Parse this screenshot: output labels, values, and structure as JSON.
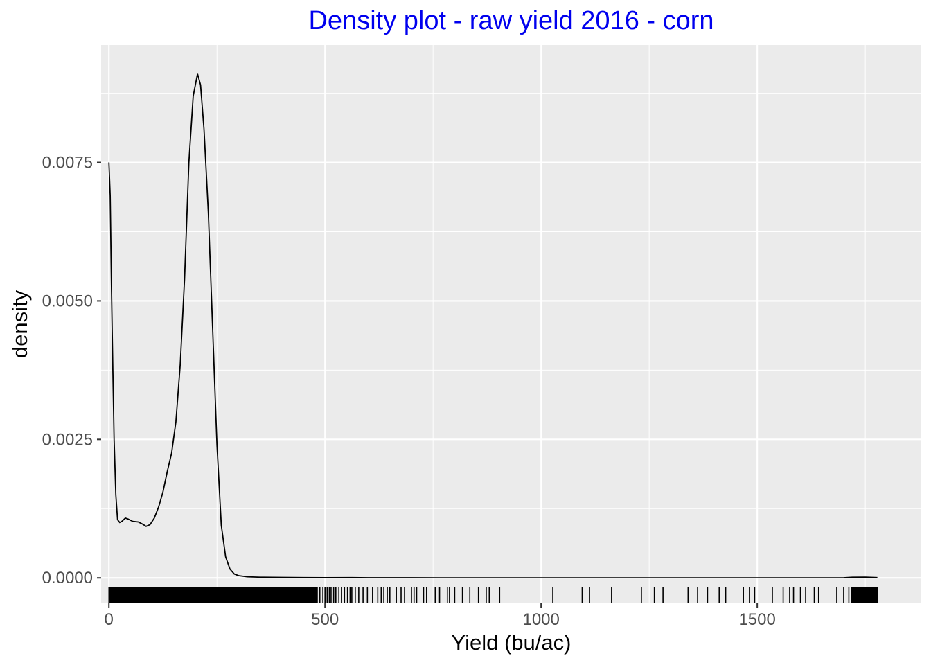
{
  "chart_data": {
    "type": "line",
    "subtype": "density",
    "title": "Density plot - raw yield 2016 - corn",
    "xlabel": "Yield (bu/ac)",
    "ylabel": "density",
    "xlim": [
      -18,
      1878
    ],
    "ylim": [
      -0.00046,
      0.00962
    ],
    "x_ticks": [
      {
        "value": 0,
        "label": "0"
      },
      {
        "value": 500,
        "label": "500"
      },
      {
        "value": 1000,
        "label": "1000"
      },
      {
        "value": 1500,
        "label": "1500"
      }
    ],
    "y_ticks": [
      {
        "value": 0,
        "label": "0.0000"
      },
      {
        "value": 0.0025,
        "label": "0.0025"
      },
      {
        "value": 0.005,
        "label": "0.0050"
      },
      {
        "value": 0.0075,
        "label": "0.0075"
      }
    ],
    "grid": true,
    "colors": {
      "panel": "#ebebeb",
      "grid": "#ffffff",
      "line": "#000000",
      "title": "#0000ee"
    },
    "density_curve": [
      [
        0,
        0.0075
      ],
      [
        3,
        0.0069
      ],
      [
        6,
        0.0052
      ],
      [
        9,
        0.0038
      ],
      [
        12,
        0.0025
      ],
      [
        16,
        0.0015
      ],
      [
        20,
        0.00105
      ],
      [
        25,
        0.001
      ],
      [
        30,
        0.00102
      ],
      [
        38,
        0.00108
      ],
      [
        45,
        0.00106
      ],
      [
        55,
        0.00102
      ],
      [
        68,
        0.00101
      ],
      [
        78,
        0.00097
      ],
      [
        86,
        0.00093
      ],
      [
        95,
        0.00096
      ],
      [
        105,
        0.00108
      ],
      [
        115,
        0.00128
      ],
      [
        125,
        0.00155
      ],
      [
        135,
        0.00192
      ],
      [
        145,
        0.00225
      ],
      [
        155,
        0.00282
      ],
      [
        165,
        0.00385
      ],
      [
        175,
        0.0054
      ],
      [
        185,
        0.0075
      ],
      [
        195,
        0.0087
      ],
      [
        205,
        0.0091
      ],
      [
        212,
        0.0089
      ],
      [
        220,
        0.0081
      ],
      [
        230,
        0.0066
      ],
      [
        240,
        0.0045
      ],
      [
        250,
        0.0024
      ],
      [
        260,
        0.00095
      ],
      [
        270,
        0.00038
      ],
      [
        280,
        0.00016
      ],
      [
        290,
        7e-05
      ],
      [
        300,
        4e-05
      ],
      [
        320,
        2e-05
      ],
      [
        350,
        1.2e-05
      ],
      [
        400,
        8e-06
      ],
      [
        450,
        5e-06
      ],
      [
        500,
        4e-06
      ],
      [
        560,
        5e-06
      ],
      [
        600,
        3e-06
      ],
      [
        700,
        2e-06
      ],
      [
        800,
        1e-06
      ],
      [
        1000,
        1e-06
      ],
      [
        1200,
        1e-06
      ],
      [
        1500,
        1e-06
      ],
      [
        1700,
        2e-06
      ],
      [
        1720,
        1.2e-05
      ],
      [
        1750,
        1.4e-05
      ],
      [
        1778,
        6e-06
      ]
    ],
    "rug_dense_ranges": [
      [
        0,
        480
      ],
      [
        1718,
        1778
      ]
    ],
    "rug_values": [
      482,
      488,
      495,
      500,
      505,
      510,
      514,
      520,
      525,
      532,
      538,
      545,
      552,
      558,
      562,
      570,
      578,
      588,
      598,
      610,
      622,
      630,
      636,
      644,
      650,
      665,
      676,
      684,
      700,
      706,
      712,
      728,
      735,
      755,
      765,
      783,
      788,
      800,
      818,
      835,
      855,
      873,
      880,
      904,
      1027,
      1095,
      1112,
      1163,
      1232,
      1262,
      1282,
      1340,
      1362,
      1385,
      1412,
      1427,
      1468,
      1482,
      1494,
      1535,
      1560,
      1575,
      1584,
      1600,
      1612,
      1632,
      1642,
      1684,
      1700,
      1712
    ]
  }
}
